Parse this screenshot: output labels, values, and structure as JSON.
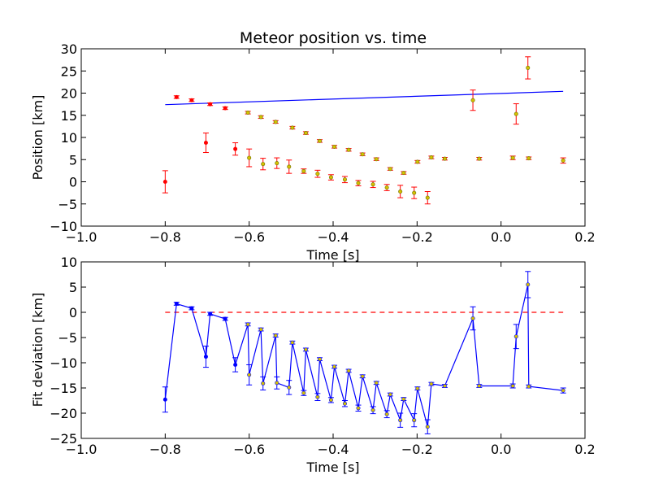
{
  "chart_data": [
    {
      "type": "scatter",
      "title": "Meteor position vs. time",
      "xlabel": "Time [s]",
      "ylabel": "Position [km]",
      "xlim": [
        -1.0,
        0.2
      ],
      "ylim": [
        -10,
        30
      ],
      "xticks": [
        "−1.0",
        "−0.8",
        "−0.6",
        "−0.4",
        "−0.2",
        "0.0",
        "0.2"
      ],
      "xtick_values": [
        -1.0,
        -0.8,
        -0.6,
        -0.4,
        -0.2,
        0.0,
        0.2
      ],
      "yticks": [
        "−10",
        "−5",
        "0",
        "5",
        "10",
        "15",
        "20",
        "25",
        "30"
      ],
      "ytick_values": [
        -10,
        -5,
        0,
        5,
        10,
        15,
        20,
        25,
        30
      ],
      "grid": false,
      "colors": {
        "fit_line": "#0000ff",
        "errorbar": "#ff0000",
        "marker_red": "#ff0000",
        "marker_yellow": "#d4c000",
        "marker_edge": "#6b6b00"
      },
      "fit_line": {
        "x": [
          -0.8,
          0.148
        ],
        "y": [
          17.4,
          20.4
        ]
      },
      "series": [
        {
          "marker": "red",
          "points": [
            {
              "x": -0.8,
              "y": 0.0,
              "err": 2.5
            },
            {
              "x": -0.773,
              "y": 19.1,
              "err": 0.3
            },
            {
              "x": -0.737,
              "y": 18.4,
              "err": 0.3
            },
            {
              "x": -0.703,
              "y": 8.8,
              "err": 2.2
            },
            {
              "x": -0.693,
              "y": 17.5,
              "err": 0.3
            },
            {
              "x": -0.657,
              "y": 16.6,
              "err": 0.3
            },
            {
              "x": -0.633,
              "y": 7.4,
              "err": 1.4
            }
          ]
        },
        {
          "marker": "yellow",
          "points": [
            {
              "x": -0.603,
              "y": 15.6,
              "err": 0.3
            },
            {
              "x": -0.6,
              "y": 5.4,
              "err": 2.0
            },
            {
              "x": -0.572,
              "y": 14.6,
              "err": 0.3
            },
            {
              "x": -0.567,
              "y": 4.0,
              "err": 1.3
            },
            {
              "x": -0.537,
              "y": 13.5,
              "err": 0.3
            },
            {
              "x": -0.534,
              "y": 4.2,
              "err": 1.2
            },
            {
              "x": -0.505,
              "y": 3.4,
              "err": 1.5
            },
            {
              "x": -0.497,
              "y": 12.2,
              "err": 0.3
            },
            {
              "x": -0.47,
              "y": 2.4,
              "err": 0.5
            },
            {
              "x": -0.465,
              "y": 11.0,
              "err": 0.3
            },
            {
              "x": -0.437,
              "y": 1.8,
              "err": 0.8
            },
            {
              "x": -0.432,
              "y": 9.2,
              "err": 0.3
            },
            {
              "x": -0.405,
              "y": 1.0,
              "err": 0.6
            },
            {
              "x": -0.397,
              "y": 7.9,
              "err": 0.3
            },
            {
              "x": -0.372,
              "y": 0.5,
              "err": 0.7
            },
            {
              "x": -0.363,
              "y": 7.2,
              "err": 0.3
            },
            {
              "x": -0.34,
              "y": -0.3,
              "err": 0.6
            },
            {
              "x": -0.33,
              "y": 6.2,
              "err": 0.3
            },
            {
              "x": -0.305,
              "y": -0.6,
              "err": 0.7
            },
            {
              "x": -0.297,
              "y": 5.1,
              "err": 0.3
            },
            {
              "x": -0.272,
              "y": -1.3,
              "err": 0.7
            },
            {
              "x": -0.264,
              "y": 2.9,
              "err": 0.3
            },
            {
              "x": -0.24,
              "y": -2.2,
              "err": 1.4
            },
            {
              "x": -0.232,
              "y": 2.0,
              "err": 0.3
            },
            {
              "x": -0.207,
              "y": -2.5,
              "err": 1.3
            },
            {
              "x": -0.199,
              "y": 4.5,
              "err": 0.3
            },
            {
              "x": -0.175,
              "y": -3.6,
              "err": 1.4
            },
            {
              "x": -0.166,
              "y": 5.5,
              "err": 0.3
            },
            {
              "x": -0.134,
              "y": 5.2,
              "err": 0.3
            },
            {
              "x": -0.067,
              "y": 18.4,
              "err": 2.3
            },
            {
              "x": -0.052,
              "y": 5.2,
              "err": 0.3
            },
            {
              "x": 0.028,
              "y": 5.4,
              "err": 0.4
            },
            {
              "x": 0.036,
              "y": 15.3,
              "err": 2.3
            },
            {
              "x": 0.064,
              "y": 25.7,
              "err": 2.5
            },
            {
              "x": 0.066,
              "y": 5.3,
              "err": 0.3
            },
            {
              "x": 0.148,
              "y": 4.8,
              "err": 0.6
            }
          ]
        }
      ]
    },
    {
      "type": "line",
      "xlabel": "Time [s]",
      "ylabel": "Fit deviation [km]",
      "xlim": [
        -1.0,
        0.2
      ],
      "ylim": [
        -25,
        10
      ],
      "xticks": [
        "−1.0",
        "−0.8",
        "−0.6",
        "−0.4",
        "−0.2",
        "0.0",
        "0.2"
      ],
      "xtick_values": [
        -1.0,
        -0.8,
        -0.6,
        -0.4,
        -0.2,
        0.0,
        0.2
      ],
      "yticks": [
        "−25",
        "−20",
        "−15",
        "−10",
        "−5",
        "0",
        "5",
        "10"
      ],
      "ytick_values": [
        -25,
        -20,
        -15,
        -10,
        -5,
        0,
        5,
        10
      ],
      "grid": false,
      "colors": {
        "line": "#0000ff",
        "zero_line": "#ff0000",
        "marker_yellow": "#d4c000",
        "marker_blue": "#0000ff"
      },
      "zero_line": {
        "y": 0
      },
      "series": [
        {
          "points": [
            {
              "x": -0.8,
              "y": -17.3,
              "err": 2.5,
              "marker": "blue"
            },
            {
              "x": -0.773,
              "y": 1.7,
              "err": 0.3,
              "marker": "blue"
            },
            {
              "x": -0.737,
              "y": 0.8,
              "err": 0.3,
              "marker": "blue"
            },
            {
              "x": -0.703,
              "y": -8.8,
              "err": 2.1,
              "marker": "blue"
            },
            {
              "x": -0.693,
              "y": -0.3,
              "err": 0.3,
              "marker": "blue"
            },
            {
              "x": -0.657,
              "y": -1.3,
              "err": 0.3,
              "marker": "blue"
            },
            {
              "x": -0.633,
              "y": -10.4,
              "err": 1.4,
              "marker": "blue"
            },
            {
              "x": -0.603,
              "y": -2.4,
              "err": 0.3,
              "marker": "yellow"
            },
            {
              "x": -0.6,
              "y": -12.4,
              "err": 2.0,
              "marker": "yellow"
            },
            {
              "x": -0.572,
              "y": -3.4,
              "err": 0.3,
              "marker": "yellow"
            },
            {
              "x": -0.567,
              "y": -14.1,
              "err": 1.3,
              "marker": "yellow"
            },
            {
              "x": -0.537,
              "y": -4.6,
              "err": 0.3,
              "marker": "yellow"
            },
            {
              "x": -0.534,
              "y": -14.0,
              "err": 1.2,
              "marker": "yellow"
            },
            {
              "x": -0.505,
              "y": -14.9,
              "err": 1.4,
              "marker": "yellow"
            },
            {
              "x": -0.497,
              "y": -6.0,
              "err": 0.3,
              "marker": "yellow"
            },
            {
              "x": -0.47,
              "y": -16.0,
              "err": 0.5,
              "marker": "yellow"
            },
            {
              "x": -0.465,
              "y": -7.4,
              "err": 0.3,
              "marker": "yellow"
            },
            {
              "x": -0.437,
              "y": -16.8,
              "err": 0.7,
              "marker": "yellow"
            },
            {
              "x": -0.432,
              "y": -9.3,
              "err": 0.3,
              "marker": "yellow"
            },
            {
              "x": -0.405,
              "y": -17.4,
              "err": 0.5,
              "marker": "yellow"
            },
            {
              "x": -0.397,
              "y": -10.8,
              "err": 0.3,
              "marker": "yellow"
            },
            {
              "x": -0.372,
              "y": -18.1,
              "err": 0.6,
              "marker": "yellow"
            },
            {
              "x": -0.363,
              "y": -11.6,
              "err": 0.3,
              "marker": "yellow"
            },
            {
              "x": -0.34,
              "y": -19.0,
              "err": 0.6,
              "marker": "yellow"
            },
            {
              "x": -0.33,
              "y": -12.7,
              "err": 0.3,
              "marker": "yellow"
            },
            {
              "x": -0.305,
              "y": -19.4,
              "err": 0.7,
              "marker": "yellow"
            },
            {
              "x": -0.297,
              "y": -14.0,
              "err": 0.3,
              "marker": "yellow"
            },
            {
              "x": -0.272,
              "y": -20.2,
              "err": 0.7,
              "marker": "yellow"
            },
            {
              "x": -0.264,
              "y": -16.3,
              "err": 0.3,
              "marker": "yellow"
            },
            {
              "x": -0.24,
              "y": -21.4,
              "err": 1.4,
              "marker": "yellow"
            },
            {
              "x": -0.232,
              "y": -17.2,
              "err": 0.3,
              "marker": "yellow"
            },
            {
              "x": -0.207,
              "y": -21.4,
              "err": 1.3,
              "marker": "yellow"
            },
            {
              "x": -0.199,
              "y": -15.1,
              "err": 0.3,
              "marker": "yellow"
            },
            {
              "x": -0.175,
              "y": -22.7,
              "err": 1.4,
              "marker": "yellow"
            },
            {
              "x": -0.166,
              "y": -14.2,
              "err": 0.3,
              "marker": "yellow"
            },
            {
              "x": -0.134,
              "y": -14.6,
              "err": 0.3,
              "marker": "yellow"
            },
            {
              "x": -0.067,
              "y": -1.2,
              "err": 2.3,
              "marker": "yellow"
            },
            {
              "x": -0.052,
              "y": -14.6,
              "err": 0.3,
              "marker": "yellow"
            },
            {
              "x": 0.028,
              "y": -14.6,
              "err": 0.4,
              "marker": "yellow"
            },
            {
              "x": 0.036,
              "y": -4.8,
              "err": 2.4,
              "marker": "yellow"
            },
            {
              "x": 0.064,
              "y": 5.5,
              "err": 2.6,
              "marker": "yellow"
            },
            {
              "x": 0.066,
              "y": -14.7,
              "err": 0.3,
              "marker": "yellow"
            },
            {
              "x": 0.148,
              "y": -15.5,
              "err": 0.5,
              "marker": "yellow"
            }
          ]
        }
      ]
    }
  ]
}
